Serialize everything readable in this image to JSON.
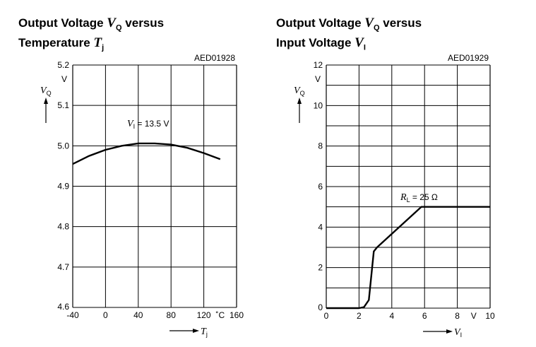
{
  "chart_data": [
    {
      "type": "line",
      "title_line1": "Output Voltage",
      "title_var": "V",
      "title_var_sub": "Q",
      "title_line1_end": "versus",
      "title_line2": "Temperature",
      "title_line2_var": "T",
      "title_line2_sub": "j",
      "code": "AED01928",
      "xlabel": "T",
      "xlabel_sub": "j",
      "xunit": "˚C",
      "ylabel": "V",
      "ylabel_sub": "Q",
      "yunit": "V",
      "xlim": [
        -40,
        160
      ],
      "ylim": [
        4.6,
        5.2
      ],
      "xticks": [
        "-40",
        "0",
        "40",
        "80",
        "120",
        "160"
      ],
      "yticks": [
        "4.6",
        "4.7",
        "4.8",
        "4.9",
        "5.0",
        "5.1",
        "5.2"
      ],
      "annotation": "= 13.5 V",
      "annotation_var": "V",
      "annotation_sub": "I",
      "series": [
        {
          "name": "VI = 13.5 V",
          "x": [
            -40,
            -20,
            0,
            20,
            40,
            60,
            80,
            100,
            120,
            140
          ],
          "y": [
            4.955,
            4.975,
            4.99,
            5.0,
            5.006,
            5.006,
            5.003,
            4.995,
            4.982,
            4.967
          ]
        }
      ]
    },
    {
      "type": "line",
      "title_line1": "Output Voltage",
      "title_var": "V",
      "title_var_sub": "Q",
      "title_line1_end": "versus",
      "title_line2": "Input Voltage",
      "title_line2_var": "V",
      "title_line2_sub": "I",
      "code": "AED01929",
      "xlabel": "V",
      "xlabel_sub": "I",
      "xunit": "V",
      "ylabel": "V",
      "ylabel_sub": "Q",
      "yunit": "V",
      "xlim": [
        0,
        10
      ],
      "ylim": [
        0,
        12
      ],
      "xticks": [
        "0",
        "2",
        "4",
        "6",
        "8",
        "10"
      ],
      "yticks": [
        "0",
        "2",
        "4",
        "6",
        "8",
        "10",
        "12"
      ],
      "annotation": "= 25 Ω",
      "annotation_var": "R",
      "annotation_sub": "L",
      "series": [
        {
          "name": "RL = 25 Ω",
          "x": [
            0,
            2,
            2.3,
            2.6,
            2.9,
            3.1,
            5.8,
            10
          ],
          "y": [
            0,
            0,
            0.05,
            0.4,
            2.8,
            3.0,
            5.0,
            5.0
          ]
        }
      ]
    }
  ]
}
